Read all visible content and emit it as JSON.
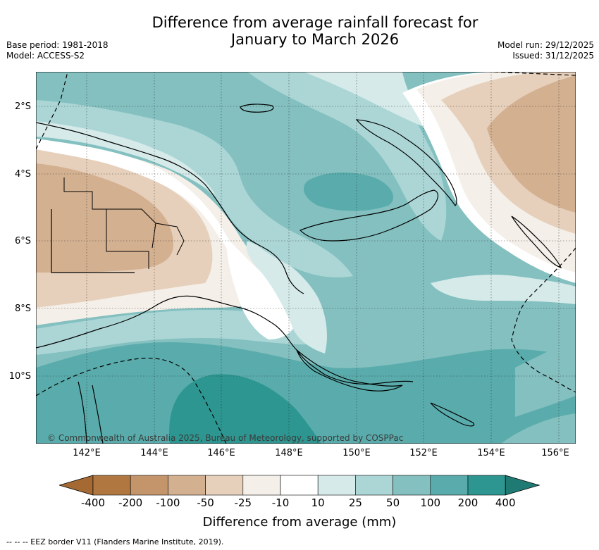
{
  "title": {
    "line1": "Difference from average rainfall forecast for",
    "line2": "January to March 2026"
  },
  "meta": {
    "base_period": "Base period: 1981-2018",
    "model": "Model: ACCESS-S2",
    "model_run": "Model run: 29/12/2025",
    "issued": "Issued: 31/12/2025"
  },
  "map": {
    "lat_labels": [
      "2°S",
      "4°S",
      "6°S",
      "8°S",
      "10°S"
    ],
    "lon_labels": [
      "142°E",
      "144°E",
      "146°E",
      "148°E",
      "150°E",
      "152°E",
      "154°E",
      "156°E"
    ],
    "copyright": "© Commonwealth of Australia 2025, Bureau of Meteorology, supported by COSPPac"
  },
  "colorbar": {
    "title": "Difference from average (mm)",
    "labels": [
      "-400",
      "-200",
      "-100",
      "-50",
      "-25",
      "-10",
      "10",
      "25",
      "50",
      "100",
      "200",
      "400"
    ],
    "colors": [
      "#a56a33",
      "#b07840",
      "#c4946a",
      "#d3b090",
      "#e6d0bb",
      "#f4efe8",
      "#ffffff",
      "#d6eaea",
      "#acd6d6",
      "#84c0c0",
      "#5aacac",
      "#2e9690",
      "#1f7a74"
    ]
  },
  "legend": {
    "eez": "--  --  -- EEZ border V11 (Flanders Marine Institute, 2019)."
  }
}
